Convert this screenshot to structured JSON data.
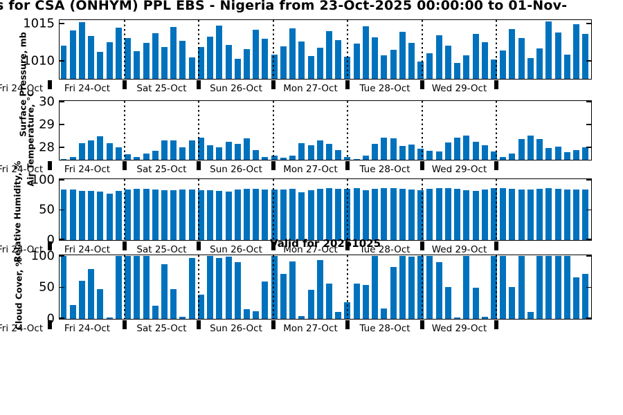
{
  "title": "s for CSA (ONHYM) PPL EBS  - Nigeria from 23-Oct-2025 00:00:00 to 01-Nov-",
  "annotation": {
    "valid_label": "Valid for 20251025"
  },
  "x_axis": {
    "clipped_left_label": "Fri 24-Oct",
    "day_labels": [
      "Fri 24-Oct",
      "Sat 25-Oct",
      "Sun 26-Oct",
      "Mon 27-Oct",
      "Tue 28-Oct",
      "Wed 29-Oct"
    ]
  },
  "colors": {
    "bar": "#0072BD",
    "axis": "#000000",
    "background": "#ffffff"
  },
  "chart_data": [
    {
      "type": "bar",
      "name": "surface-pressure",
      "title": "Surface Pressure",
      "ylabel": "Surface Pressure, mb",
      "ylim": [
        1007.6,
        1015.4
      ],
      "yticks": [
        {
          "value": 1015,
          "label": "1015"
        },
        {
          "value": 1010,
          "label": "1010"
        }
      ],
      "xticklabels": [
        "Fri 24-Oct",
        "Sat 25-Oct",
        "Sun 26-Oct",
        "Mon 27-Oct",
        "Tue 28-Oct",
        "Wed 29-Oct"
      ],
      "x_unit": "time, 3-hourly bars, dotted gridlines at day boundaries",
      "values": [
        1012.1,
        1014.1,
        1015.2,
        1013.4,
        1011.2,
        1012.5,
        1014.5,
        1013.1,
        1011.3,
        1012.4,
        1013.7,
        1011.9,
        1014.6,
        1012.7,
        1010.5,
        1011.9,
        1013.3,
        1014.8,
        1012.2,
        1010.3,
        1011.6,
        1014.2,
        1013.0,
        1010.9,
        1012.0,
        1014.4,
        1012.6,
        1010.7,
        1011.8,
        1014.0,
        1012.8,
        1010.6,
        1012.3,
        1014.7,
        1013.2,
        1010.8,
        1011.5,
        1013.9,
        1012.4,
        1009.9,
        1011.0,
        1013.5,
        1012.1,
        1009.7,
        1010.8,
        1013.6,
        1012.5,
        1010.2,
        1011.4,
        1014.3,
        1013.1,
        1010.4,
        1011.7,
        1015.3,
        1013.8,
        1010.9,
        1014.9,
        1013.6
      ]
    },
    {
      "type": "bar",
      "name": "air-temperature",
      "title": "Air Temperature",
      "ylabel": "Air Temperature, °C",
      "ylim": [
        27.47,
        30.0
      ],
      "yticks": [
        {
          "value": 30,
          "label": "30"
        },
        {
          "value": 29,
          "label": "29"
        },
        {
          "value": 28,
          "label": "28"
        }
      ],
      "xticklabels": [
        "Fri 24-Oct",
        "Sat 25-Oct",
        "Sun 26-Oct",
        "Mon 27-Oct",
        "Tue 28-Oct",
        "Wed 29-Oct"
      ],
      "x_unit": "time, 3-hourly bars, dotted gridlines at day boundaries",
      "values": [
        27.5,
        27.6,
        28.2,
        28.3,
        28.5,
        28.2,
        28.0,
        27.7,
        27.6,
        27.75,
        27.85,
        28.3,
        28.3,
        28.0,
        28.3,
        28.45,
        28.1,
        28.0,
        28.25,
        28.15,
        28.4,
        27.9,
        27.6,
        27.65,
        27.55,
        27.65,
        28.2,
        28.1,
        28.32,
        28.15,
        27.9,
        27.6,
        27.5,
        27.65,
        28.15,
        28.43,
        28.42,
        28.07,
        28.13,
        27.94,
        27.87,
        27.83,
        28.22,
        28.45,
        28.54,
        28.26,
        28.1,
        27.84,
        27.58,
        27.73,
        28.37,
        28.52,
        28.37,
        27.97,
        28.03,
        27.79,
        27.9,
        28.0
      ]
    },
    {
      "type": "bar",
      "name": "relative-humidity",
      "title": "Relative Humidity",
      "ylabel": "Relative Humidity, %",
      "ylim": [
        0,
        100
      ],
      "yticks": [
        {
          "value": 100,
          "label": "100"
        },
        {
          "value": 50,
          "label": "50"
        },
        {
          "value": 0,
          "label": "0"
        }
      ],
      "xticklabels": [
        "Fri 24-Oct",
        "Sat 25-Oct",
        "Sun 26-Oct",
        "Mon 27-Oct",
        "Tue 28-Oct",
        "Wed 29-Oct"
      ],
      "x_unit": "time, 3-hourly bars, dotted gridlines at day boundaries",
      "values": [
        84,
        84,
        82,
        82,
        80,
        77,
        82,
        84,
        85,
        85,
        84,
        83,
        83,
        84,
        84,
        83,
        83,
        82,
        80,
        84,
        85,
        85,
        84,
        84,
        84,
        85,
        79,
        83,
        85,
        86,
        85,
        85,
        86,
        83,
        85,
        86,
        86,
        85,
        84,
        83,
        85,
        86,
        86,
        85,
        83,
        82,
        84,
        86,
        86,
        85,
        84,
        84,
        85,
        86,
        85,
        84,
        84,
        84
      ]
    },
    {
      "type": "bar",
      "name": "cloud-cover",
      "title": "Cloud Cover",
      "ylabel": "Cloud Cover, %",
      "ylim": [
        0,
        100
      ],
      "yticks": [
        {
          "value": 100,
          "label": "100"
        },
        {
          "value": 50,
          "label": "50"
        },
        {
          "value": 0,
          "label": "0"
        }
      ],
      "xticklabels": [
        "Fri 24-Oct",
        "Sat 25-Oct",
        "Sun 26-Oct",
        "Mon 27-Oct",
        "Tue 28-Oct",
        "Wed 29-Oct"
      ],
      "x_unit": "time, 3-hourly bars, dotted gridlines at day boundaries",
      "values": [
        100,
        22,
        60,
        79,
        47,
        2,
        100,
        100,
        100,
        100,
        21,
        87,
        47,
        3,
        97,
        39,
        100,
        97,
        99,
        90,
        15,
        12,
        59,
        100,
        71,
        91,
        4,
        46,
        94,
        56,
        11,
        26,
        56,
        54,
        100,
        17,
        82,
        100,
        99,
        100,
        100,
        90,
        51,
        2,
        100,
        49,
        3,
        100,
        100,
        51,
        100,
        11,
        100,
        100,
        100,
        100,
        66,
        72
      ]
    }
  ]
}
